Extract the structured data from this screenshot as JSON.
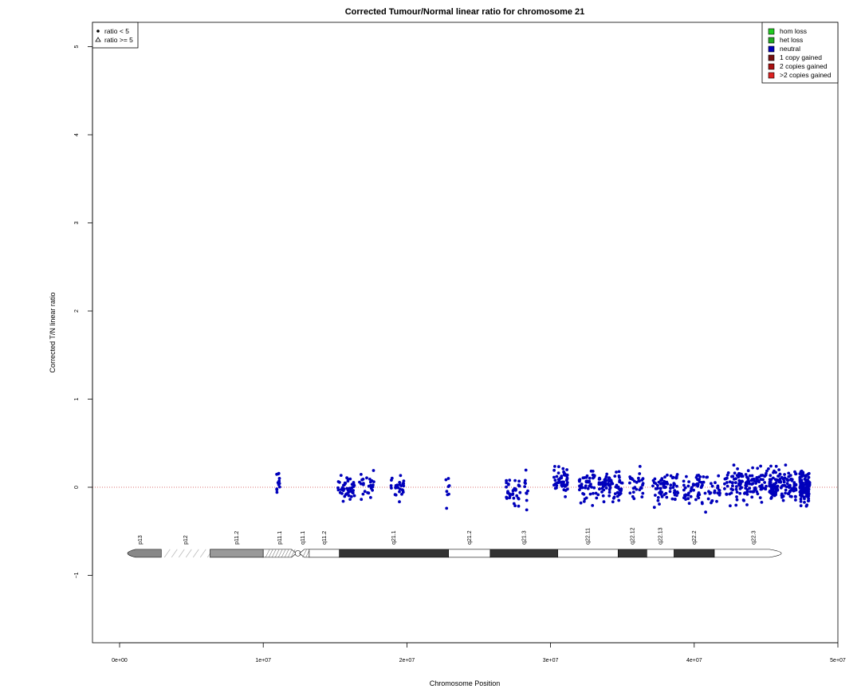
{
  "chart_data": {
    "type": "scatter",
    "title": "Corrected Tumour/Normal linear ratio for chromosome  21",
    "xlabel": "Chromosome Position",
    "ylabel": "Corrected T/N linear ratio",
    "xlim": [
      -2000000,
      50000000
    ],
    "ylim": [
      -1.75,
      5.25
    ],
    "x_ticks": [
      {
        "value": 0,
        "label": "0e+00"
      },
      {
        "value": 10000000,
        "label": "1e+07"
      },
      {
        "value": 20000000,
        "label": "2e+07"
      },
      {
        "value": 30000000,
        "label": "3e+07"
      },
      {
        "value": 40000000,
        "label": "4e+07"
      },
      {
        "value": 50000000,
        "label": "5e+07"
      }
    ],
    "y_ticks": [
      {
        "value": -1,
        "label": "−1"
      },
      {
        "value": 0,
        "label": "0"
      },
      {
        "value": 1,
        "label": "1"
      },
      {
        "value": 2,
        "label": "2"
      },
      {
        "value": 3,
        "label": "3"
      },
      {
        "value": 4,
        "label": "4"
      },
      {
        "value": 5,
        "label": "5"
      }
    ],
    "reference_line": {
      "y": 0,
      "style": "dotted",
      "color": "#cc4444"
    },
    "legend_shape": {
      "position": "top-left",
      "entries": [
        {
          "symbol": "dot",
          "label": "ratio < 5"
        },
        {
          "symbol": "triangle",
          "label": "ratio >= 5"
        }
      ]
    },
    "legend_status": {
      "position": "top-right",
      "entries": [
        {
          "label": "hom loss",
          "color": "#22cc22"
        },
        {
          "label": "het loss",
          "color": "#22aa22"
        },
        {
          "label": "neutral",
          "color": "#0000bb"
        },
        {
          "label": "1 copy gained",
          "color": "#771111"
        },
        {
          "label": "2 copies gained",
          "color": "#aa1111"
        },
        {
          "label": ">2 copies gained",
          "color": "#dd2222"
        }
      ]
    },
    "ideogram": {
      "y": -0.75,
      "bands": [
        {
          "name": "p13",
          "start": 0,
          "end": 2900000,
          "stain": "acen_like_grey",
          "fill": "#888888"
        },
        {
          "name": "p12",
          "start": 2900000,
          "end": 6300000,
          "stain": "stalk",
          "fill": "#ffffff"
        },
        {
          "name": "p11.2",
          "start": 6300000,
          "end": 10000000,
          "stain": "gpos50",
          "fill": "#999999"
        },
        {
          "name": "p11.1",
          "start": 10000000,
          "end": 12300000,
          "stain": "acen",
          "fill": "#ffffff"
        },
        {
          "name": "q11.1",
          "start": 12300000,
          "end": 13200000,
          "stain": "acen",
          "fill": "#ffffff"
        },
        {
          "name": "q11.2",
          "start": 13200000,
          "end": 15300000,
          "stain": "gneg",
          "fill": "#ffffff"
        },
        {
          "name": "q21.1",
          "start": 15300000,
          "end": 22900000,
          "stain": "gpos100",
          "fill": "#333333"
        },
        {
          "name": "q21.2",
          "start": 22900000,
          "end": 25800000,
          "stain": "gneg",
          "fill": "#ffffff"
        },
        {
          "name": "q21.3",
          "start": 25800000,
          "end": 30500000,
          "stain": "gpos75",
          "fill": "#333333"
        },
        {
          "name": "q22.11",
          "start": 30500000,
          "end": 34700000,
          "stain": "gneg",
          "fill": "#ffffff"
        },
        {
          "name": "q22.12",
          "start": 34700000,
          "end": 36700000,
          "stain": "gpos50",
          "fill": "#333333"
        },
        {
          "name": "q22.13",
          "start": 36700000,
          "end": 38600000,
          "stain": "gneg",
          "fill": "#ffffff"
        },
        {
          "name": "q22.2",
          "start": 38600000,
          "end": 41400000,
          "stain": "gpos50",
          "fill": "#333333"
        },
        {
          "name": "q22.3",
          "start": 41400000,
          "end": 46900000,
          "stain": "gneg",
          "fill": "#ffffff"
        }
      ]
    },
    "point_color": "#0000bb",
    "point_clusters": [
      {
        "center": 11000000,
        "spread": 150000,
        "count": 12,
        "sd": 0.12,
        "mean": 0.05
      },
      {
        "center": 15800000,
        "spread": 600000,
        "count": 45,
        "sd": 0.12,
        "mean": 0.0
      },
      {
        "center": 17200000,
        "spread": 500000,
        "count": 25,
        "sd": 0.12,
        "mean": 0.03
      },
      {
        "center": 19300000,
        "spread": 500000,
        "count": 28,
        "sd": 0.12,
        "mean": -0.02
      },
      {
        "center": 22800000,
        "spread": 150000,
        "count": 8,
        "sd": 0.15,
        "mean": -0.05
      },
      {
        "center": 27400000,
        "spread": 500000,
        "count": 35,
        "sd": 0.14,
        "mean": -0.05
      },
      {
        "center": 28300000,
        "spread": 150000,
        "count": 10,
        "sd": 0.15,
        "mean": 0.0
      },
      {
        "center": 30700000,
        "spread": 500000,
        "count": 50,
        "sd": 0.14,
        "mean": 0.08
      },
      {
        "center": 33500000,
        "spread": 1500000,
        "count": 120,
        "sd": 0.15,
        "mean": 0.02
      },
      {
        "center": 36000000,
        "spread": 500000,
        "count": 30,
        "sd": 0.14,
        "mean": 0.05
      },
      {
        "center": 38000000,
        "spread": 900000,
        "count": 70,
        "sd": 0.15,
        "mean": 0.0
      },
      {
        "center": 40500000,
        "spread": 1300000,
        "count": 75,
        "sd": 0.15,
        "mean": 0.0
      },
      {
        "center": 43800000,
        "spread": 1700000,
        "count": 150,
        "sd": 0.15,
        "mean": 0.03
      },
      {
        "center": 46200000,
        "spread": 900000,
        "count": 110,
        "sd": 0.16,
        "mean": 0.03
      },
      {
        "center": 47700000,
        "spread": 350000,
        "count": 110,
        "sd": 0.16,
        "mean": 0.0
      }
    ]
  }
}
